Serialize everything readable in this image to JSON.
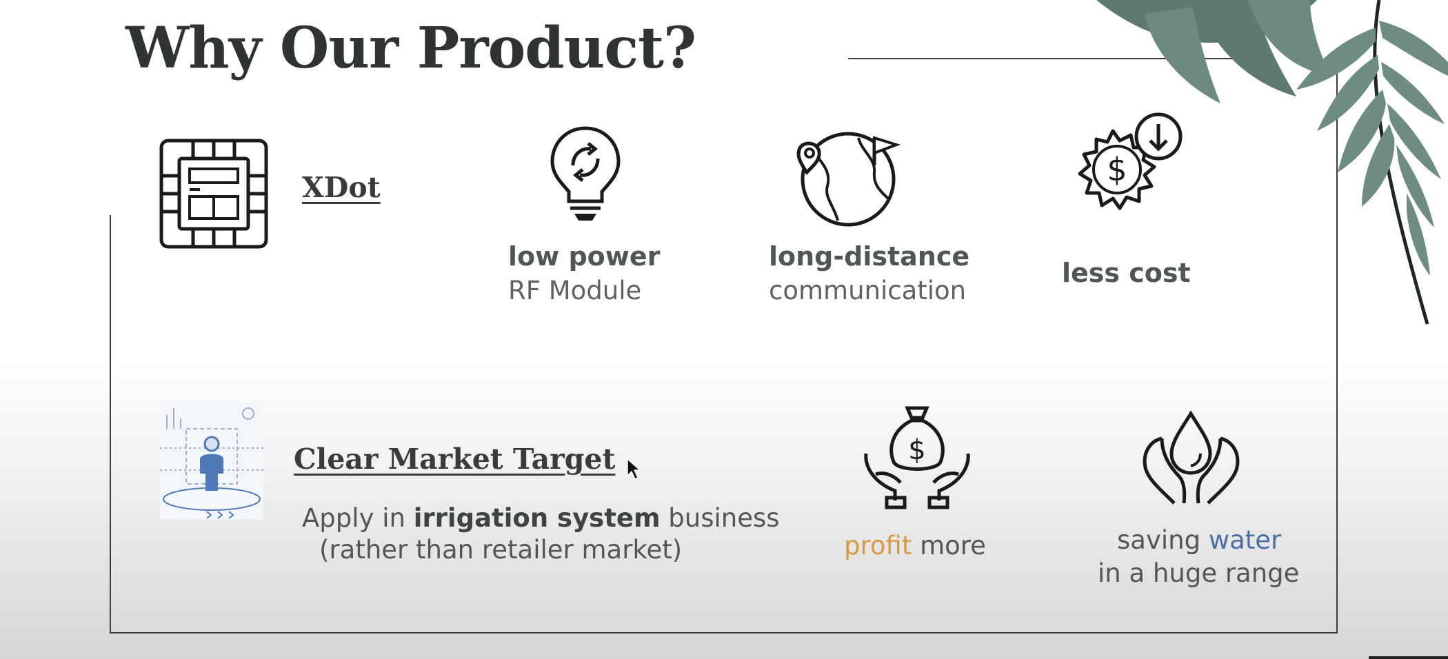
{
  "slide": {
    "title": "Why Our Product?"
  },
  "product": {
    "name": "XDot"
  },
  "features": [
    {
      "bold": "low power",
      "light": "RF Module",
      "icon": "lightbulb-icon"
    },
    {
      "bold": "long-distance",
      "light": "communication",
      "icon": "globe-location-icon"
    },
    {
      "bold": "less cost",
      "light": "",
      "icon": "dollar-down-icon"
    }
  ],
  "market": {
    "title": "Clear Market Target",
    "line1_pre": "Apply in ",
    "line1_bold": "irrigation system",
    "line1_post": " business",
    "line2": "(rather than retailer market)"
  },
  "benefits": {
    "profit": {
      "highlight": "profit",
      "rest": " more",
      "icon": "money-bag-hands-icon"
    },
    "water": {
      "pre": "saving ",
      "highlight": "water",
      "line2": "in a huge range",
      "icon": "water-drop-hands-icon"
    }
  },
  "colors": {
    "title": "#2f3331",
    "profit_accent": "#d79a45",
    "water_accent": "#4a6fa8"
  }
}
